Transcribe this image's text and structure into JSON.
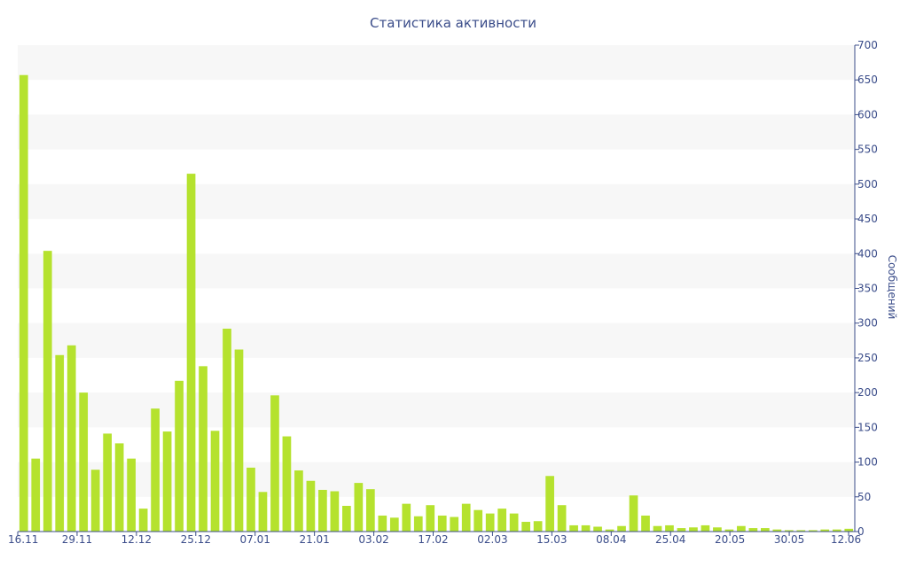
{
  "chart_data": {
    "type": "bar",
    "title": "Статистика активности",
    "ylabel": "Сообщений",
    "xlabel": "",
    "ylim": [
      0,
      700
    ],
    "y_ticks": [
      0,
      50,
      100,
      150,
      200,
      250,
      300,
      350,
      400,
      450,
      500,
      550,
      600,
      650,
      700
    ],
    "y_axis_position": "right",
    "grid": "horizontal-bands",
    "bar_color": "#b5e22e",
    "band_color": "#f7f7f7",
    "axis_color": "#3b4d8a",
    "x_tick_labels": [
      "16.11",
      "29.11",
      "12.12",
      "25.12",
      "07.01",
      "21.01",
      "03.02",
      "17.02",
      "02.03",
      "15.03",
      "08.04",
      "25.04",
      "20.05",
      "30.05",
      "12.06"
    ],
    "values": [
      657,
      105,
      404,
      254,
      268,
      200,
      89,
      141,
      127,
      105,
      33,
      177,
      144,
      217,
      515,
      238,
      145,
      292,
      262,
      92,
      57,
      196,
      137,
      88,
      73,
      60,
      58,
      37,
      70,
      61,
      23,
      20,
      40,
      22,
      38,
      23,
      21,
      40,
      31,
      26,
      33,
      26,
      14,
      15,
      80,
      38,
      9,
      9,
      7,
      3,
      8,
      52,
      23,
      8,
      9,
      5,
      6,
      9,
      6,
      3,
      8,
      5,
      5,
      3,
      2,
      2,
      2,
      3,
      3,
      4
    ]
  }
}
